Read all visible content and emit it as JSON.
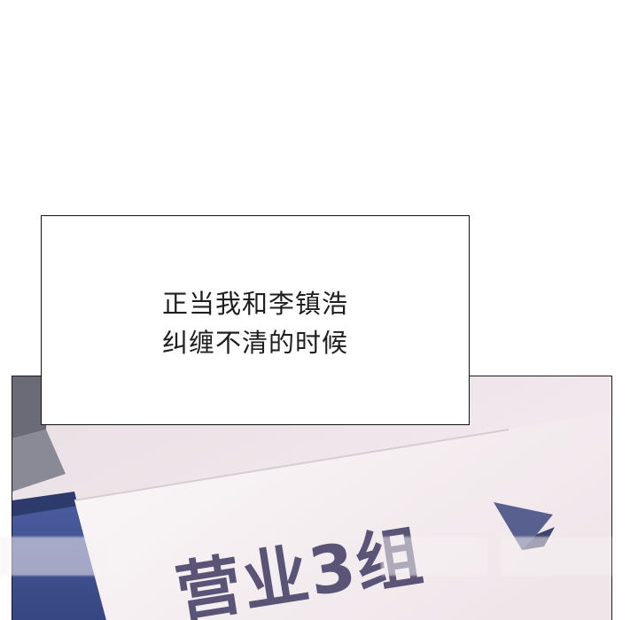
{
  "narration": {
    "lines": [
      "正当我和李镇浩",
      "纠缠不清的时候"
    ]
  },
  "panel": {
    "sign_text": "营业3组"
  },
  "colors": {
    "sign_text": "#5a5477",
    "paper": "#f3ecef",
    "folder_blue": "#3d4f8f",
    "panel_border": "#1b1b1b"
  }
}
